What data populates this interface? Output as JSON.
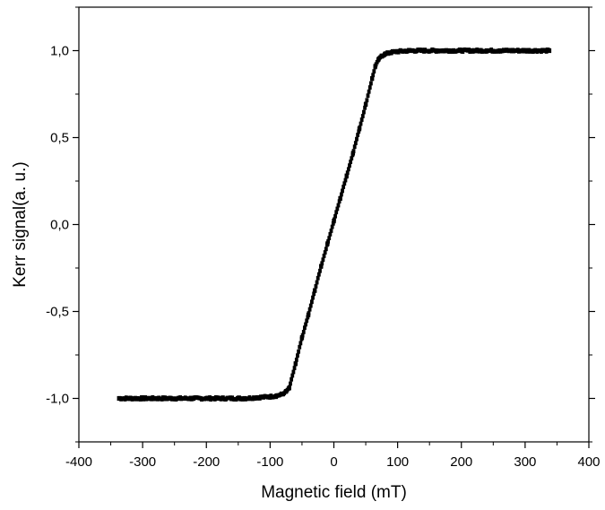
{
  "chart_data": {
    "type": "scatter",
    "title": "",
    "xlabel": "Magnetic field (mT)",
    "ylabel": "Kerr signal(a. u.)",
    "xlim": [
      -400,
      400
    ],
    "ylim": [
      -1.25,
      1.25
    ],
    "x_ticks": [
      -400,
      -300,
      -200,
      -100,
      0,
      100,
      200,
      300,
      400
    ],
    "x_tick_labels": [
      "-400",
      "-300",
      "-200",
      "-100",
      "0",
      "100",
      "200",
      "300",
      "400"
    ],
    "y_ticks": [
      -1.0,
      -0.5,
      0.0,
      0.5,
      1.0
    ],
    "y_tick_labels": [
      "-1,0",
      "-0,5",
      "0,0",
      "0,5",
      "1,0"
    ],
    "grid": false,
    "legend": "none",
    "marker_color": "#000000",
    "series": [
      {
        "x": [
          -337,
          -320,
          -300,
          -280,
          -260,
          -240,
          -220,
          -200,
          -180,
          -160,
          -140,
          -120,
          -100,
          -90,
          -80,
          -75,
          -70,
          -60,
          -50,
          -40,
          -30,
          -20,
          -10,
          0,
          10,
          20,
          30,
          40,
          50,
          60,
          65,
          70,
          75,
          80,
          90,
          100,
          120,
          140,
          160,
          180,
          200,
          220,
          240,
          260,
          280,
          300,
          320,
          338
        ],
        "y": [
          -1.0,
          -1.0,
          -1.0,
          -1.0,
          -1.0,
          -1.0,
          -1.0,
          -1.0,
          -1.0,
          -1.0,
          -1.0,
          -0.995,
          -0.99,
          -0.985,
          -0.975,
          -0.96,
          -0.94,
          -0.8,
          -0.65,
          -0.52,
          -0.38,
          -0.24,
          -0.11,
          0.02,
          0.15,
          0.28,
          0.41,
          0.55,
          0.69,
          0.84,
          0.91,
          0.95,
          0.97,
          0.98,
          0.99,
          0.995,
          1.0,
          1.0,
          1.0,
          1.0,
          1.0,
          1.0,
          1.0,
          1.0,
          1.0,
          1.0,
          1.0,
          1.0
        ]
      }
    ]
  }
}
